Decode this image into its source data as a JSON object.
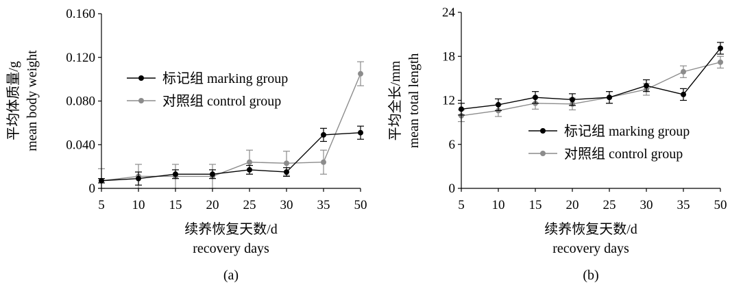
{
  "chart_data": [
    {
      "type": "line",
      "panel_label": "(a)",
      "x": [
        "5",
        "10",
        "15",
        "20",
        "25",
        "30",
        "35",
        "50"
      ],
      "xlabel": [
        "续养恢复天数/d",
        "recovery days"
      ],
      "ylabel": [
        "平均体质量/g",
        "mean body weight"
      ],
      "ylim": [
        0,
        0.16
      ],
      "yticks": [
        "0",
        "0.040",
        "0.080",
        "0.120",
        "0.160"
      ],
      "legend_position": "upper-left",
      "series": [
        {
          "name": "标记组 marking group",
          "color": "#000000",
          "values": [
            0.007,
            0.009,
            0.013,
            0.013,
            0.017,
            0.015,
            0.049,
            0.051
          ],
          "errors": [
            0.002,
            0.006,
            0.004,
            0.004,
            0.004,
            0.004,
            0.006,
            0.006
          ]
        },
        {
          "name": "对照组 control group",
          "color": "#8c8c8c",
          "values": [
            0.007,
            0.011,
            0.011,
            0.011,
            0.024,
            0.023,
            0.024,
            0.105
          ],
          "errors": [
            0.011,
            0.011,
            0.011,
            0.011,
            0.011,
            0.011,
            0.011,
            0.011
          ]
        }
      ]
    },
    {
      "type": "line",
      "panel_label": "(b)",
      "x": [
        "5",
        "10",
        "15",
        "20",
        "25",
        "30",
        "35",
        "50"
      ],
      "xlabel": [
        "续养恢复天数/d",
        "recovery days"
      ],
      "ylabel": [
        "平均全长/mm",
        "mean total length"
      ],
      "ylim": [
        0,
        24
      ],
      "yticks": [
        "0",
        "6",
        "12",
        "18",
        "24"
      ],
      "legend_position": "lower-right",
      "series": [
        {
          "name": "标记组 marking group",
          "color": "#000000",
          "values": [
            10.8,
            11.4,
            12.4,
            12.1,
            12.4,
            14.0,
            12.8,
            19.1
          ],
          "errors": [
            0.8,
            0.8,
            0.8,
            0.8,
            0.8,
            0.8,
            0.8,
            0.8
          ]
        },
        {
          "name": "对照组 control group",
          "color": "#8c8c8c",
          "values": [
            9.9,
            10.6,
            11.6,
            11.5,
            12.4,
            13.5,
            15.9,
            17.2
          ],
          "errors": [
            0.8,
            0.8,
            0.8,
            0.8,
            0.8,
            0.8,
            0.8,
            0.8
          ]
        }
      ]
    }
  ]
}
